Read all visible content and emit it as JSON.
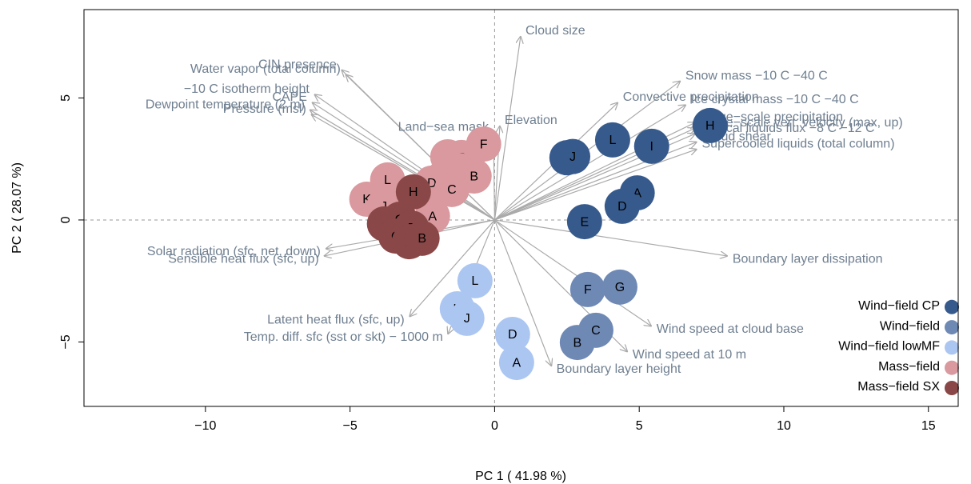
{
  "chart_data": {
    "type": "biplot",
    "x_label": "PC 1 ( 41.98 %)",
    "y_label": "PC 2 ( 28.07 %)",
    "xlim": [
      -14.2,
      16.03
    ],
    "ylim": [
      -7.64,
      8.62
    ],
    "xticks": [
      {
        "value": -10,
        "label": "−10"
      },
      {
        "value": -5,
        "label": "−5"
      },
      0,
      5,
      10,
      15
    ],
    "yticks": [
      {
        "value": -5,
        "label": "−5"
      },
      0,
      5
    ],
    "grid": false,
    "legend": "bottom-right",
    "series": [
      {
        "name": "Wind−field CP",
        "color": "#375a8c",
        "labels": [
          "H",
          "L",
          "I",
          "K",
          "J",
          "A",
          "D",
          "E"
        ],
        "x": [
          7.45,
          4.08,
          5.43,
          2.5,
          2.7,
          4.93,
          4.41,
          3.11
        ],
        "y": [
          3.87,
          3.28,
          3.02,
          2.55,
          2.6,
          1.11,
          0.56,
          -0.07
        ]
      },
      {
        "name": "Wind−field",
        "color": "#6f89b5",
        "labels": [
          "F",
          "G",
          "C",
          "B"
        ],
        "x": [
          3.22,
          4.33,
          3.5,
          2.86
        ],
        "y": [
          -2.85,
          -2.75,
          -4.52,
          -5.02
        ]
      },
      {
        "name": "Wind−field lowMF",
        "color": "#acc6f2",
        "labels": [
          "L",
          "K",
          "J",
          "D",
          "A"
        ],
        "x": [
          -0.68,
          -1.29,
          -0.96,
          0.62,
          0.76
        ],
        "y": [
          -2.49,
          -3.64,
          -4.03,
          -4.69,
          -5.84
        ]
      },
      {
        "name": "Mass−field",
        "color": "#d9999e",
        "labels": [
          "F",
          "I",
          "G",
          "H",
          "B",
          "E",
          "D",
          "C",
          "L",
          "K",
          "J",
          "A"
        ],
        "x": [
          -0.38,
          -1.62,
          -1.15,
          -1.23,
          -0.71,
          -1.76,
          -2.17,
          -1.48,
          -3.7,
          -4.42,
          -3.83,
          -2.15
        ],
        "y": [
          3.11,
          2.59,
          2.56,
          2.03,
          1.8,
          1.74,
          1.51,
          1.25,
          1.64,
          0.85,
          0.56,
          0.16
        ]
      },
      {
        "name": "Mass−field SX",
        "color": "#8a4747",
        "labels": [
          "H",
          "I",
          "G",
          "F",
          "C",
          "E",
          "B"
        ],
        "x": [
          -2.81,
          -3.81,
          -3.28,
          -2.87,
          -3.42,
          -2.95,
          -2.51
        ],
        "y": [
          1.15,
          -0.16,
          0.03,
          -0.33,
          -0.66,
          -0.89,
          -0.75
        ]
      }
    ],
    "loadings": {
      "labels": [
        "Cloud size",
        "CIN presence",
        "Water vapor (total column)",
        "−10 C isotherm height",
        "CAPE",
        "Dewpoint temperature (2 m)",
        "Pressure (msl)",
        "Land−sea mask",
        "Elevation",
        "Snow mass −10 C −40 C",
        "Convective precipitation",
        "Ice crystal mass −10 C −40 C",
        "Large−scale precipitation",
        "Large−scale vert. velocity (max, up)",
        "Vertical liquids flux −8 C −12 C",
        "Cloud shear",
        "Supercooled liquids (total column)",
        "Boundary layer dissipation",
        "Wind speed at cloud base",
        "Wind speed at 10 m",
        "Boundary layer height",
        "Temp. diff. sfc (sst or skt) − 1000 m",
        "Latent heat flux (sfc, up)",
        "Solar radiation (sfc, net, down)",
        "Sensible heat flux (sfc, up)"
      ],
      "x": [
        0.9,
        -5.3,
        -5.16,
        -6.24,
        -6.32,
        -6.4,
        -6.35,
        -0.04,
        0.18,
        6.43,
        4.27,
        6.62,
        6.95,
        6.95,
        6.95,
        7.0,
        7.0,
        8.06,
        5.43,
        4.6,
        1.97,
        -1.62,
        -2.95,
        -5.85,
        -5.91
      ],
      "y": [
        7.54,
        6.16,
        5.97,
        5.15,
        4.82,
        4.52,
        4.33,
        3.6,
        3.87,
        5.7,
        4.82,
        4.72,
        4.0,
        3.77,
        3.54,
        3.2,
        2.9,
        -1.48,
        -4.36,
        -5.41,
        -6.0,
        -4.69,
        -3.97,
        -1.18,
        -1.48
      ]
    }
  }
}
